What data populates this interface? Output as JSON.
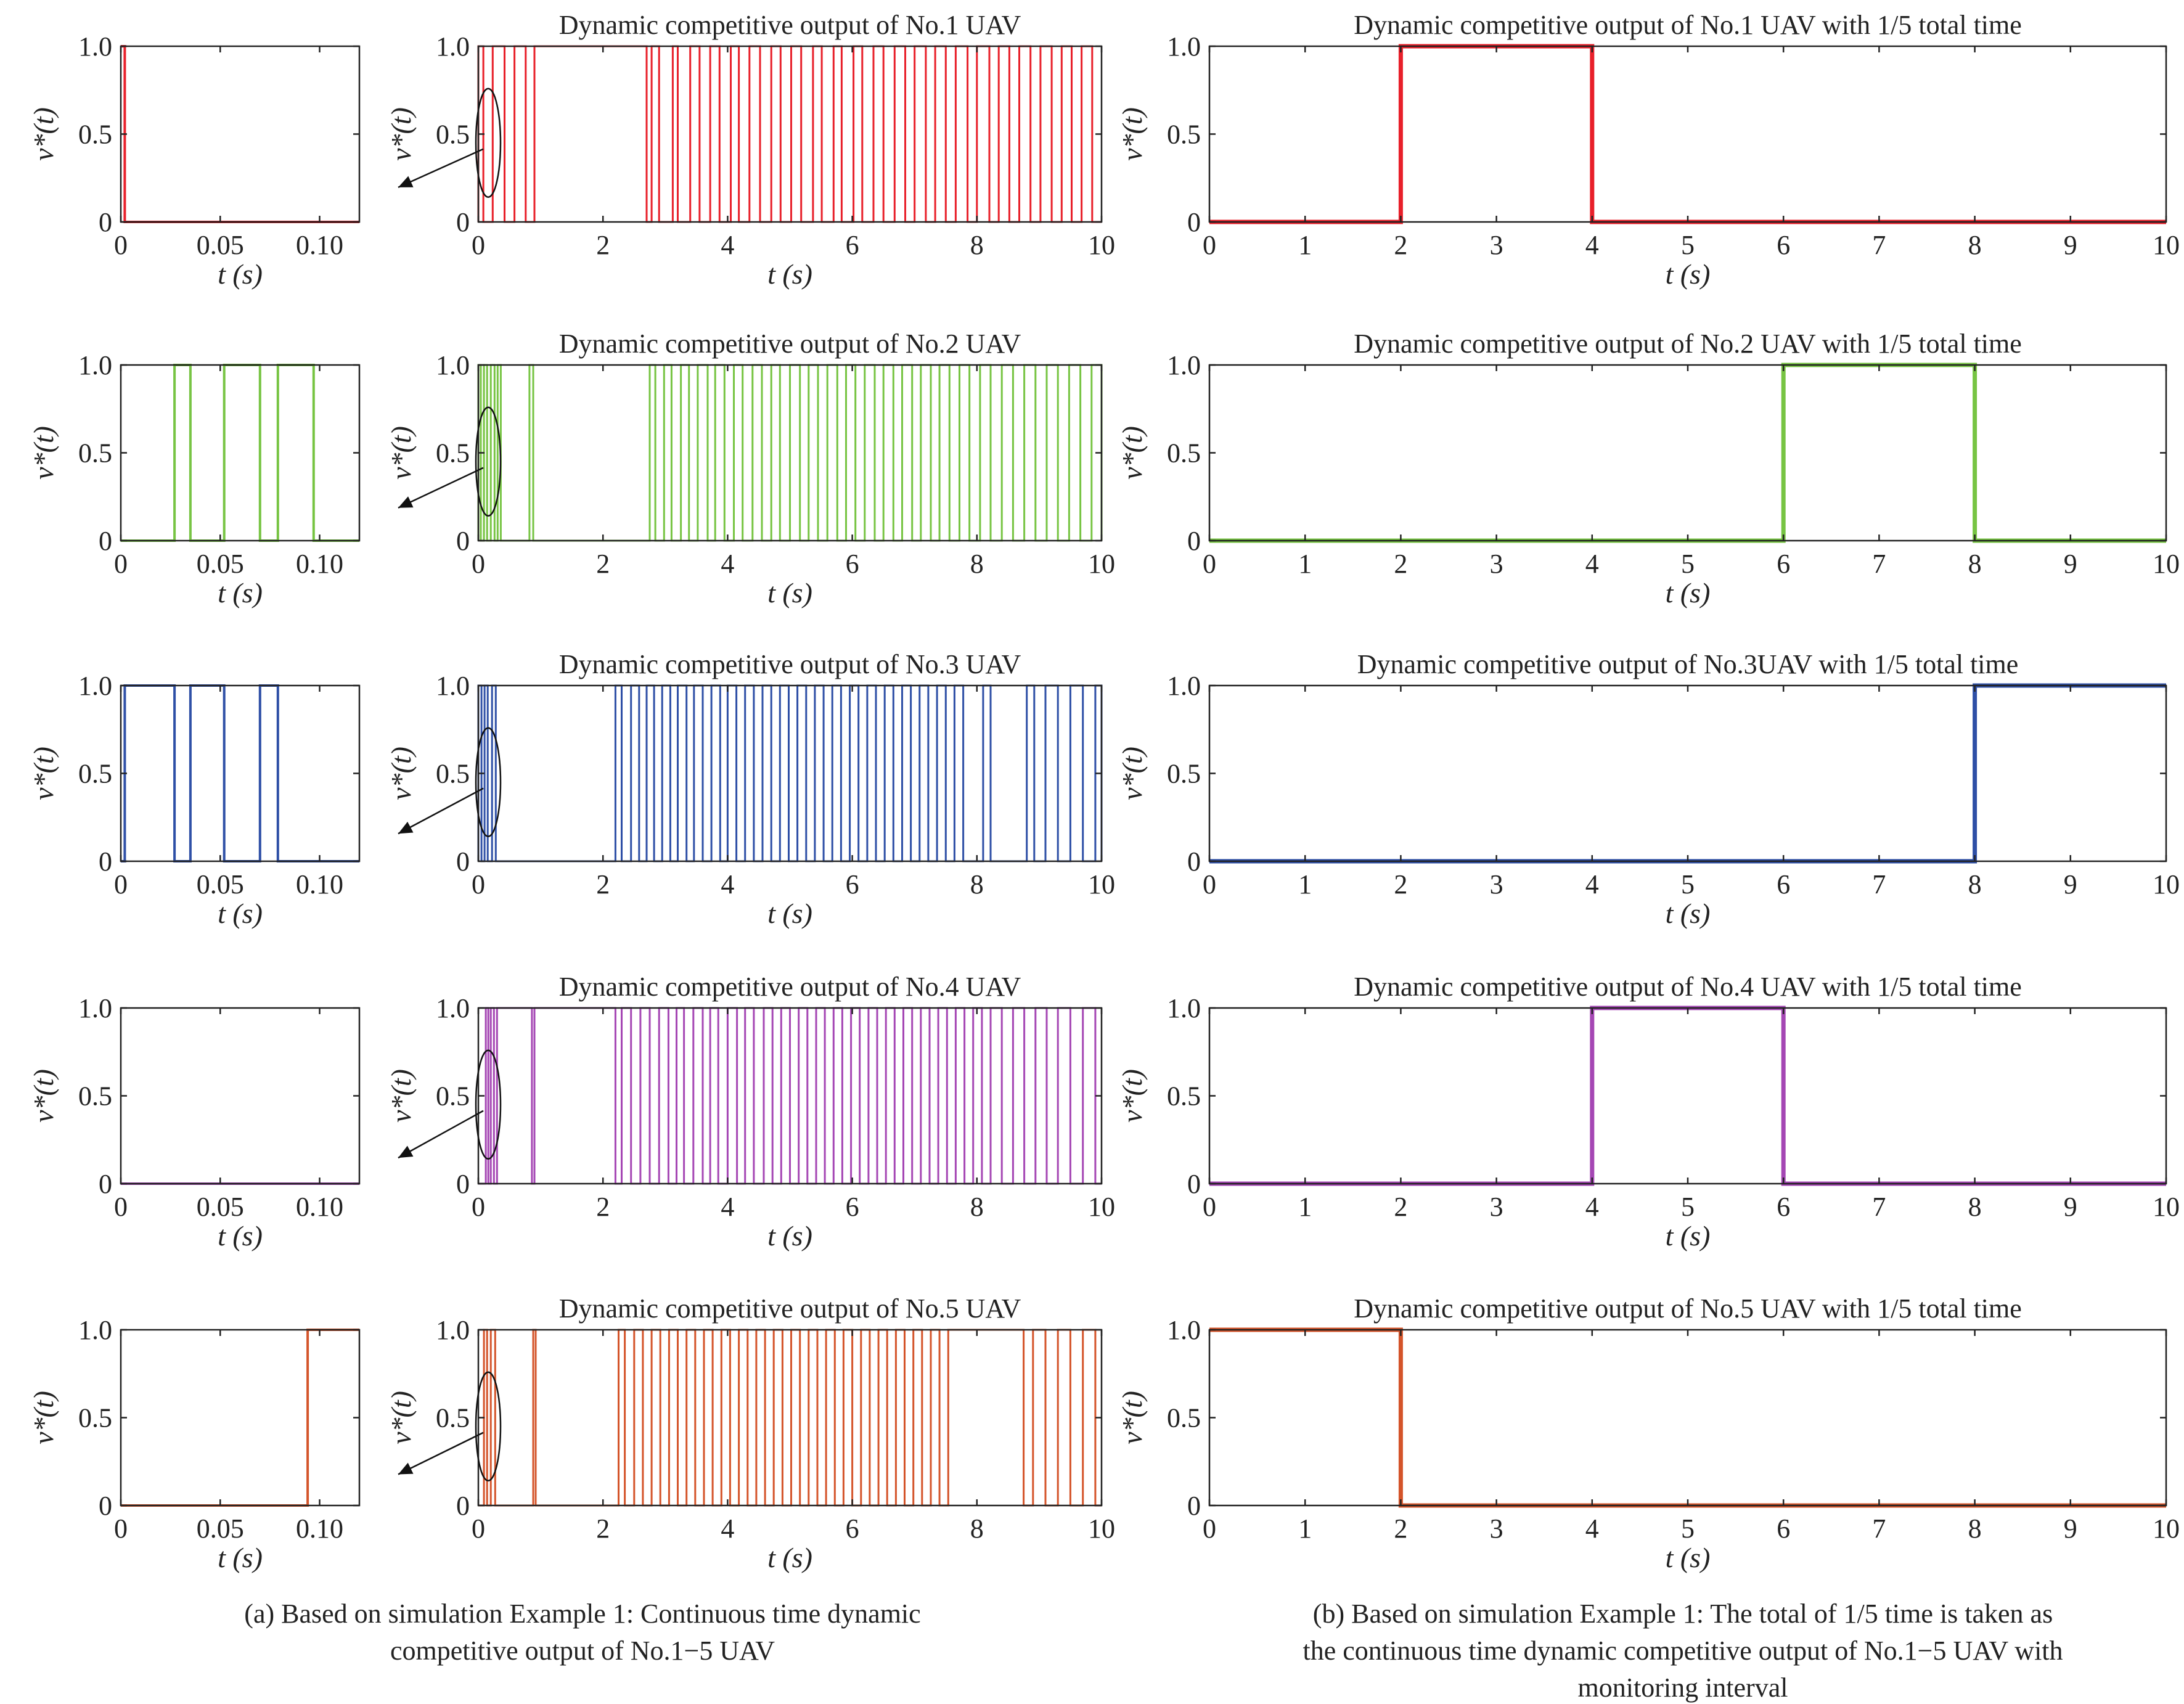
{
  "chart_data": [
    {
      "id": "a1-zoom",
      "type": "line",
      "series_color": "#e8202a",
      "x": [
        0,
        0.002,
        0.002,
        0.12
      ],
      "y": [
        1,
        1,
        0,
        0
      ],
      "xlim": [
        0,
        0.12
      ],
      "ylim": [
        0,
        1
      ],
      "xticks": [
        0,
        0.05,
        0.1
      ],
      "xtick_labels": [
        "0",
        "0.05",
        "0.10"
      ],
      "yticks": [
        0,
        0.5,
        1.0
      ],
      "ytick_labels": [
        "0",
        "0.5",
        "1.0"
      ],
      "xlabel": "t (s)",
      "ylabel": "v*(t)",
      "title": ""
    },
    {
      "id": "a1-full",
      "type": "line",
      "series_color": "#e8202a",
      "transition_times": [
        0,
        0.08,
        0.23,
        0.42,
        0.58,
        0.76,
        0.9,
        2.7,
        2.78,
        2.9,
        3.12,
        3.2,
        3.4,
        3.55,
        3.72,
        3.87,
        4.05,
        4.18,
        4.35,
        4.52,
        4.7,
        4.85,
        5.02,
        5.18,
        5.37,
        5.51,
        5.7,
        5.83,
        6.02,
        6.16,
        6.34,
        6.5,
        6.68,
        6.85,
        7.0,
        7.18,
        7.33,
        7.5,
        7.66,
        7.85,
        8.0,
        8.2,
        8.35,
        8.52,
        8.68,
        8.86,
        9.02,
        9.2,
        9.36,
        9.52,
        9.68,
        9.85,
        10.0
      ],
      "xlim": [
        0,
        10
      ],
      "ylim": [
        0,
        1
      ],
      "xticks": [
        0,
        2,
        4,
        6,
        8,
        10
      ],
      "xtick_labels": [
        "0",
        "2",
        "4",
        "6",
        "8",
        "10"
      ],
      "yticks": [
        0,
        0.5,
        1.0
      ],
      "ytick_labels": [
        "0",
        "0.5",
        "1.0"
      ],
      "xlabel": "t (s)",
      "ylabel": "v*(t)",
      "title": "Dynamic competitive output of No.1 UAV"
    },
    {
      "id": "b1",
      "type": "line",
      "series_color": "#e8202a",
      "x": [
        0,
        2,
        2,
        4,
        4,
        10
      ],
      "y": [
        0,
        0,
        1,
        1,
        0,
        0
      ],
      "xlim": [
        0,
        10
      ],
      "ylim": [
        0,
        1
      ],
      "xticks": [
        0,
        1,
        2,
        3,
        4,
        5,
        6,
        7,
        8,
        9,
        10
      ],
      "xtick_labels": [
        "0",
        "1",
        "2",
        "3",
        "4",
        "5",
        "6",
        "7",
        "8",
        "9",
        "10"
      ],
      "yticks": [
        0,
        0.5,
        1.0
      ],
      "ytick_labels": [
        "0",
        "0.5",
        "1.0"
      ],
      "xlabel": "t (s)",
      "ylabel": "v*(t)",
      "title": "Dynamic competitive output of No.1 UAV with 1/5 total time"
    },
    {
      "id": "a2-zoom",
      "type": "line",
      "series_color": "#77c443",
      "x": [
        0,
        0.027,
        0.027,
        0.035,
        0.035,
        0.052,
        0.052,
        0.07,
        0.07,
        0.079,
        0.079,
        0.097,
        0.097,
        0.12
      ],
      "y": [
        0,
        0,
        1,
        1,
        0,
        0,
        1,
        1,
        0,
        0,
        1,
        1,
        0,
        0
      ],
      "xlim": [
        0,
        0.12
      ],
      "ylim": [
        0,
        1
      ],
      "xticks": [
        0,
        0.05,
        0.1
      ],
      "xtick_labels": [
        "0",
        "0.05",
        "0.10"
      ],
      "yticks": [
        0,
        0.5,
        1.0
      ],
      "ytick_labels": [
        "0",
        "0.5",
        "1.0"
      ],
      "xlabel": "t (s)",
      "ylabel": "v*(t)",
      "title": ""
    },
    {
      "id": "a2-full",
      "type": "line",
      "series_color": "#77c443",
      "transition_times": [
        0,
        0.04,
        0.09,
        0.14,
        0.2,
        0.26,
        0.31,
        0.36,
        0.82,
        0.88,
        2.75,
        2.84,
        2.98,
        3.1,
        3.25,
        3.38,
        3.52,
        3.68,
        3.8,
        3.95,
        4.1,
        4.24,
        4.4,
        4.55,
        4.7,
        4.84,
        5.0,
        5.16,
        5.3,
        5.45,
        5.6,
        5.76,
        5.9,
        6.05,
        6.2,
        6.36,
        6.5,
        6.66,
        6.8,
        6.96,
        7.1,
        7.26,
        7.4,
        7.56,
        7.72,
        7.88,
        8.05,
        8.22,
        8.4,
        8.58,
        8.76,
        8.94,
        9.12,
        9.3,
        9.48,
        9.66,
        9.84,
        10.0
      ],
      "xlim": [
        0,
        10
      ],
      "ylim": [
        0,
        1
      ],
      "xticks": [
        0,
        2,
        4,
        6,
        8,
        10
      ],
      "xtick_labels": [
        "0",
        "2",
        "4",
        "6",
        "8",
        "10"
      ],
      "yticks": [
        0,
        0.5,
        1.0
      ],
      "ytick_labels": [
        "0",
        "0.5",
        "1.0"
      ],
      "xlabel": "t (s)",
      "ylabel": "v*(t)",
      "title": "Dynamic competitive output of No.2 UAV"
    },
    {
      "id": "b2",
      "type": "line",
      "series_color": "#77c443",
      "x": [
        0,
        6,
        6,
        8,
        8,
        10
      ],
      "y": [
        0,
        0,
        1,
        1,
        0,
        0
      ],
      "xlim": [
        0,
        10
      ],
      "ylim": [
        0,
        1
      ],
      "xticks": [
        0,
        1,
        2,
        3,
        4,
        5,
        6,
        7,
        8,
        9,
        10
      ],
      "xtick_labels": [
        "0",
        "1",
        "2",
        "3",
        "4",
        "5",
        "6",
        "7",
        "8",
        "9",
        "10"
      ],
      "yticks": [
        0,
        0.5,
        1.0
      ],
      "ytick_labels": [
        "0",
        "0.5",
        "1.0"
      ],
      "xlabel": "t (s)",
      "ylabel": "v*(t)",
      "title": "Dynamic competitive output of No.2 UAV with 1/5 total time"
    },
    {
      "id": "a3-zoom",
      "type": "line",
      "series_color": "#2e4fa6",
      "x": [
        0,
        0.002,
        0.002,
        0.027,
        0.027,
        0.035,
        0.035,
        0.052,
        0.052,
        0.07,
        0.07,
        0.079,
        0.079,
        0.12
      ],
      "y": [
        0,
        0,
        1,
        1,
        0,
        0,
        1,
        1,
        0,
        0,
        1,
        1,
        0,
        0
      ],
      "xlim": [
        0,
        0.12
      ],
      "ylim": [
        0,
        1
      ],
      "xticks": [
        0,
        0.05,
        0.1
      ],
      "xtick_labels": [
        "0",
        "0.05",
        "0.10"
      ],
      "yticks": [
        0,
        0.5,
        1.0
      ],
      "ytick_labels": [
        "0",
        "0.5",
        "1.0"
      ],
      "xlabel": "t (s)",
      "ylabel": "v*(t)",
      "title": ""
    },
    {
      "id": "a3-full",
      "type": "line",
      "series_color": "#2e4fa6",
      "transition_times": [
        0,
        0.05,
        0.1,
        0.15,
        0.22,
        0.28,
        2.2,
        2.3,
        2.45,
        2.58,
        2.7,
        2.82,
        2.95,
        3.08,
        3.2,
        3.34,
        3.46,
        3.6,
        3.74,
        3.88,
        4.0,
        4.14,
        4.28,
        4.42,
        4.56,
        4.7,
        4.84,
        4.98,
        5.12,
        5.26,
        5.4,
        5.54,
        5.68,
        5.82,
        5.96,
        6.1,
        6.24,
        6.38,
        6.52,
        6.66,
        6.8,
        6.94,
        7.08,
        7.22,
        7.36,
        7.5,
        7.64,
        7.78,
        8.1,
        8.22,
        8.8,
        8.92,
        9.1,
        9.3,
        9.5,
        9.7,
        9.9,
        10.0
      ],
      "xlim": [
        0,
        10
      ],
      "ylim": [
        0,
        1
      ],
      "xticks": [
        0,
        2,
        4,
        6,
        8,
        10
      ],
      "xtick_labels": [
        "0",
        "2",
        "4",
        "6",
        "8",
        "10"
      ],
      "yticks": [
        0,
        0.5,
        1.0
      ],
      "ytick_labels": [
        "0",
        "0.5",
        "1.0"
      ],
      "xlabel": "t (s)",
      "ylabel": "v*(t)",
      "title": "Dynamic competitive output of No.3 UAV"
    },
    {
      "id": "b3",
      "type": "line",
      "series_color": "#2e4fa6",
      "x": [
        0,
        8,
        8,
        10
      ],
      "y": [
        0,
        0,
        1,
        1
      ],
      "xlim": [
        0,
        10
      ],
      "ylim": [
        0,
        1
      ],
      "xticks": [
        0,
        1,
        2,
        3,
        4,
        5,
        6,
        7,
        8,
        9,
        10
      ],
      "xtick_labels": [
        "0",
        "1",
        "2",
        "3",
        "4",
        "5",
        "6",
        "7",
        "8",
        "9",
        "10"
      ],
      "yticks": [
        0,
        0.5,
        1.0
      ],
      "ytick_labels": [
        "0",
        "0.5",
        "1.0"
      ],
      "xlabel": "t (s)",
      "ylabel": "v*(t)",
      "title": "Dynamic competitive output of No.3UAV with 1/5 total time"
    },
    {
      "id": "a4-zoom",
      "type": "line",
      "series_color": "#a547b4",
      "x": [
        0,
        0.12
      ],
      "y": [
        0,
        0
      ],
      "xlim": [
        0,
        0.12
      ],
      "ylim": [
        0,
        1
      ],
      "xticks": [
        0,
        0.05,
        0.1
      ],
      "xtick_labels": [
        "0",
        "0.05",
        "0.10"
      ],
      "yticks": [
        0,
        0.5,
        1.0
      ],
      "ytick_labels": [
        "0",
        "0.5",
        "1.0"
      ],
      "xlabel": "t (s)",
      "ylabel": "v*(t)",
      "title": ""
    },
    {
      "id": "a4-full",
      "type": "line",
      "series_color": "#a547b4",
      "transition_times": [
        0.12,
        0.16,
        0.2,
        0.25,
        0.3,
        0.86,
        0.9,
        2.2,
        2.3,
        2.45,
        2.6,
        2.75,
        2.9,
        3.05,
        3.18,
        3.3,
        3.45,
        3.6,
        3.72,
        3.85,
        4.0,
        4.15,
        4.28,
        4.42,
        4.58,
        4.72,
        4.86,
        5.0,
        5.14,
        5.28,
        5.42,
        5.56,
        5.7,
        5.84,
        5.98,
        6.12,
        6.26,
        6.4,
        6.54,
        6.68,
        6.82,
        6.96,
        7.1,
        7.24,
        7.38,
        7.52,
        7.66,
        7.8,
        7.94,
        8.08,
        8.22,
        8.4,
        8.58,
        8.76,
        8.94,
        9.12,
        9.3,
        9.5,
        9.7,
        9.9
      ],
      "xlim": [
        0,
        10
      ],
      "ylim": [
        0,
        1
      ],
      "xticks": [
        0,
        2,
        4,
        6,
        8,
        10
      ],
      "xtick_labels": [
        "0",
        "2",
        "4",
        "6",
        "8",
        "10"
      ],
      "yticks": [
        0,
        0.5,
        1.0
      ],
      "ytick_labels": [
        "0",
        "0.5",
        "1.0"
      ],
      "xlabel": "t (s)",
      "ylabel": "v*(t)",
      "title": "Dynamic competitive output of No.4 UAV"
    },
    {
      "id": "b4",
      "type": "line",
      "series_color": "#a547b4",
      "x": [
        0,
        4,
        4,
        6,
        6,
        10
      ],
      "y": [
        0,
        0,
        1,
        1,
        0,
        0
      ],
      "xlim": [
        0,
        10
      ],
      "ylim": [
        0,
        1
      ],
      "xticks": [
        0,
        1,
        2,
        3,
        4,
        5,
        6,
        7,
        8,
        9,
        10
      ],
      "xtick_labels": [
        "0",
        "1",
        "2",
        "3",
        "4",
        "5",
        "6",
        "7",
        "8",
        "9",
        "10"
      ],
      "yticks": [
        0,
        0.5,
        1.0
      ],
      "ytick_labels": [
        "0",
        "0.5",
        "1.0"
      ],
      "xlabel": "t (s)",
      "ylabel": "v*(t)",
      "title": "Dynamic competitive output of No.4 UAV with 1/5 total time"
    },
    {
      "id": "a5-zoom",
      "type": "line",
      "series_color": "#d4542a",
      "x": [
        0,
        0.094,
        0.094,
        0.12
      ],
      "y": [
        0,
        0,
        1,
        1
      ],
      "xlim": [
        0,
        0.12
      ],
      "ylim": [
        0,
        1
      ],
      "xticks": [
        0,
        0.05,
        0.1
      ],
      "xtick_labels": [
        "0",
        "0.05",
        "0.10"
      ],
      "yticks": [
        0,
        0.5,
        1.0
      ],
      "ytick_labels": [
        "0",
        "0.5",
        "1.0"
      ],
      "xlabel": "t (s)",
      "ylabel": "v*(t)",
      "title": ""
    },
    {
      "id": "a5-full",
      "type": "line",
      "series_color": "#d4542a",
      "transition_times": [
        0.09,
        0.14,
        0.2,
        0.27,
        0.88,
        0.92,
        2.25,
        2.35,
        2.5,
        2.64,
        2.78,
        2.92,
        3.06,
        3.2,
        3.34,
        3.48,
        3.62,
        3.76,
        3.9,
        4.04,
        4.18,
        4.32,
        4.46,
        4.6,
        4.74,
        4.88,
        5.02,
        5.16,
        5.3,
        5.44,
        5.58,
        5.72,
        5.86,
        6.0,
        6.14,
        6.28,
        6.42,
        6.56,
        6.7,
        6.84,
        6.98,
        7.12,
        7.26,
        7.4,
        7.54,
        8.75,
        8.9,
        9.1,
        9.3,
        9.5,
        9.7,
        9.9
      ],
      "xlim": [
        0,
        10
      ],
      "ylim": [
        0,
        1
      ],
      "xticks": [
        0,
        2,
        4,
        6,
        8,
        10
      ],
      "xtick_labels": [
        "0",
        "2",
        "4",
        "6",
        "8",
        "10"
      ],
      "yticks": [
        0,
        0.5,
        1.0
      ],
      "ytick_labels": [
        "0",
        "0.5",
        "1.0"
      ],
      "xlabel": "t (s)",
      "ylabel": "v*(t)",
      "title": "Dynamic competitive output of No.5 UAV"
    },
    {
      "id": "b5",
      "type": "line",
      "series_color": "#d4542a",
      "x": [
        0,
        2,
        2,
        10
      ],
      "y": [
        1,
        1,
        0,
        0
      ],
      "xlim": [
        0,
        10
      ],
      "ylim": [
        0,
        1
      ],
      "xticks": [
        0,
        1,
        2,
        3,
        4,
        5,
        6,
        7,
        8,
        9,
        10
      ],
      "xtick_labels": [
        "0",
        "1",
        "2",
        "3",
        "4",
        "5",
        "6",
        "7",
        "8",
        "9",
        "10"
      ],
      "yticks": [
        0,
        0.5,
        1.0
      ],
      "ytick_labels": [
        "0",
        "0.5",
        "1.0"
      ],
      "xlabel": "t (s)",
      "ylabel": "v*(t)",
      "title": "Dynamic competitive output of No.5 UAV with 1/5 total time"
    }
  ],
  "captions": {
    "a": [
      "(a) Based on simulation Example 1: Continuous time dynamic",
      "competitive output of No.1−5 UAV"
    ],
    "b": [
      "(b) Based on simulation Example 1: The total of 1/5 time is taken as",
      "the continuous time dynamic competitive output of No.1−5 UAV with",
      "monitoring interval"
    ]
  }
}
